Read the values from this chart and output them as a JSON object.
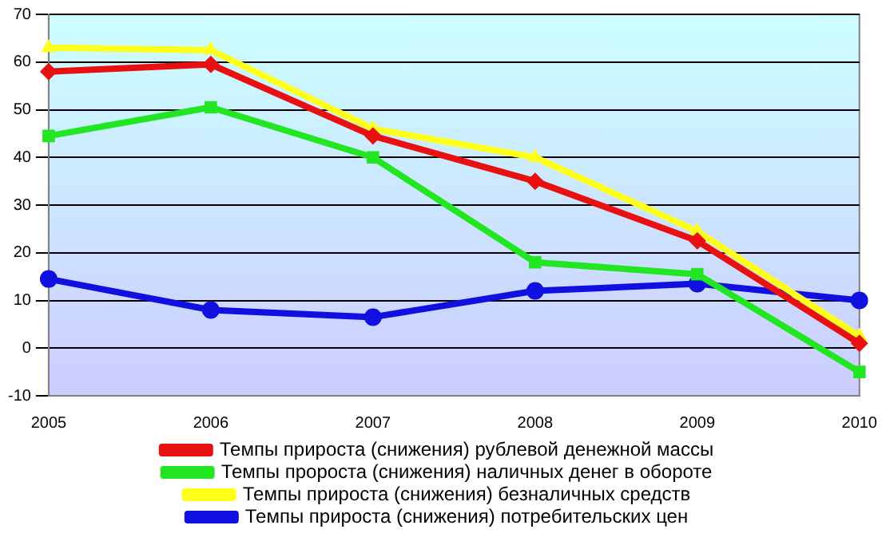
{
  "chart_data": {
    "type": "line",
    "categories": [
      "2005",
      "2006",
      "2007",
      "2008",
      "2009",
      "2010"
    ],
    "ylim": [
      -10,
      70
    ],
    "yticks": [
      -10,
      0,
      10,
      20,
      30,
      40,
      50,
      60,
      70
    ],
    "grid": "y",
    "legend": "bottom",
    "series": [
      {
        "name": "Темпы прироста (снижения) рублевой денежной массы",
        "color": "#e81010",
        "marker": "diamond",
        "values": [
          58,
          59.5,
          44.5,
          35,
          22.5,
          1
        ]
      },
      {
        "name": "Темпы пророста (снижения) наличных денег в обороте",
        "color": "#22e622",
        "marker": "square",
        "values": [
          44.5,
          50.5,
          40,
          18,
          15.5,
          -5
        ]
      },
      {
        "name": "Темпы прироста (снижения) безналичных средств",
        "color": "#ffff1a",
        "marker": "triangle",
        "values": [
          63,
          62.5,
          46,
          40,
          24.5,
          2.5
        ]
      },
      {
        "name": "Темпы прироста (снижения) потребительских цен",
        "color": "#1010e0",
        "marker": "circle",
        "values": [
          14.5,
          8,
          6.5,
          12,
          13.5,
          10
        ]
      }
    ]
  }
}
